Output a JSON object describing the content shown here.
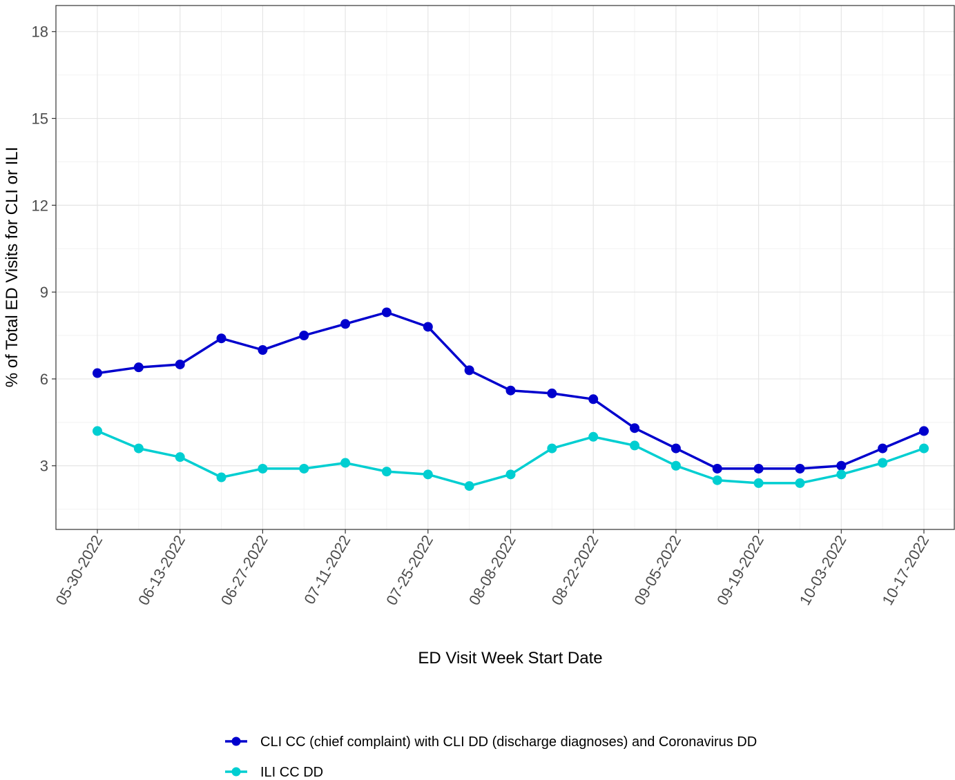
{
  "chart_data": {
    "type": "line",
    "title": "",
    "xlabel": "ED Visit Week Start Date",
    "ylabel": "% of Total ED Visits for CLI or ILI",
    "x": [
      "05-30-2022",
      "06-06-2022",
      "06-13-2022",
      "06-20-2022",
      "06-27-2022",
      "07-04-2022",
      "07-11-2022",
      "07-18-2022",
      "07-25-2022",
      "08-01-2022",
      "08-08-2022",
      "08-15-2022",
      "08-22-2022",
      "08-29-2022",
      "09-05-2022",
      "09-12-2022",
      "09-19-2022",
      "09-26-2022",
      "10-03-2022",
      "10-10-2022",
      "10-17-2022"
    ],
    "x_tick_labels": [
      "05-30-2022",
      "06-13-2022",
      "06-27-2022",
      "07-11-2022",
      "07-25-2022",
      "08-08-2022",
      "08-22-2022",
      "09-05-2022",
      "09-19-2022",
      "10-03-2022",
      "10-17-2022"
    ],
    "y_ticks": [
      3,
      6,
      9,
      12,
      15,
      18
    ],
    "ylim": [
      0.8,
      18.9
    ],
    "grid": true,
    "legend_position": "bottom",
    "series": [
      {
        "name": "CLI CC (chief complaint) with CLI DD (discharge diagnoses) and Coronavirus DD",
        "color": "#0000CD",
        "values": [
          6.2,
          6.4,
          6.5,
          7.4,
          7.0,
          7.5,
          7.9,
          8.3,
          7.8,
          6.3,
          5.6,
          5.5,
          5.3,
          4.3,
          3.6,
          2.9,
          2.9,
          2.9,
          3.0,
          3.6,
          4.2
        ]
      },
      {
        "name": "ILI CC DD",
        "color": "#00CED1",
        "values": [
          4.2,
          3.6,
          3.3,
          2.6,
          2.9,
          2.9,
          3.1,
          2.8,
          2.7,
          2.3,
          2.7,
          3.6,
          4.0,
          3.7,
          3.0,
          2.5,
          2.4,
          2.4,
          2.7,
          3.1,
          3.6
        ]
      }
    ]
  }
}
